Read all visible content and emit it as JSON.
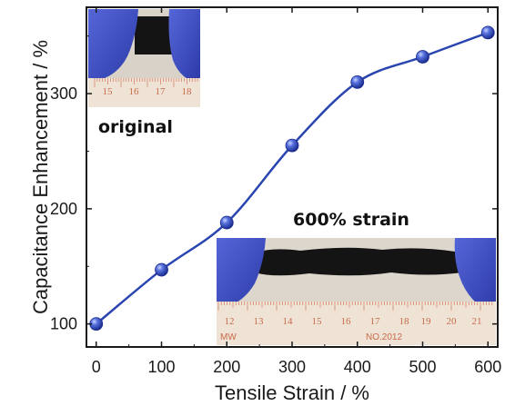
{
  "chart_data": {
    "type": "line",
    "title": "",
    "xlabel": "Tensile Strain / %",
    "ylabel": "Capacitance Enhancement / %",
    "x": [
      0,
      100,
      200,
      300,
      400,
      500,
      600
    ],
    "series": [
      {
        "values": [
          100,
          147,
          188,
          255,
          310,
          332,
          353
        ],
        "color": "#2a45b0"
      }
    ],
    "xticks": [
      "0",
      "100",
      "200",
      "300",
      "400",
      "500",
      "600"
    ],
    "yticks": [
      "100",
      "200",
      "300"
    ],
    "xlim": [
      -15,
      615
    ],
    "ylim": [
      80,
      375
    ],
    "grid": false,
    "legend": "none",
    "marker": "sphere",
    "curve": "smooth"
  },
  "insets": {
    "original": {
      "caption": "original",
      "ruler_numbers": [
        "15",
        "16",
        "17",
        "18"
      ]
    },
    "strained": {
      "caption": "600% strain",
      "ruler_numbers": [
        "12",
        "13",
        "14",
        "15",
        "16",
        "17",
        "18",
        "19",
        "20",
        "21"
      ],
      "ruler_text_left": "MW",
      "ruler_text_right": "NO.2012"
    }
  },
  "colors": {
    "line": "#2a45b0",
    "marker": "#3a55c8",
    "glove": "#3d4fc4",
    "fabric": "#141414",
    "ruler": "#efe3d6",
    "ruler_marks": "#c96a4a"
  }
}
